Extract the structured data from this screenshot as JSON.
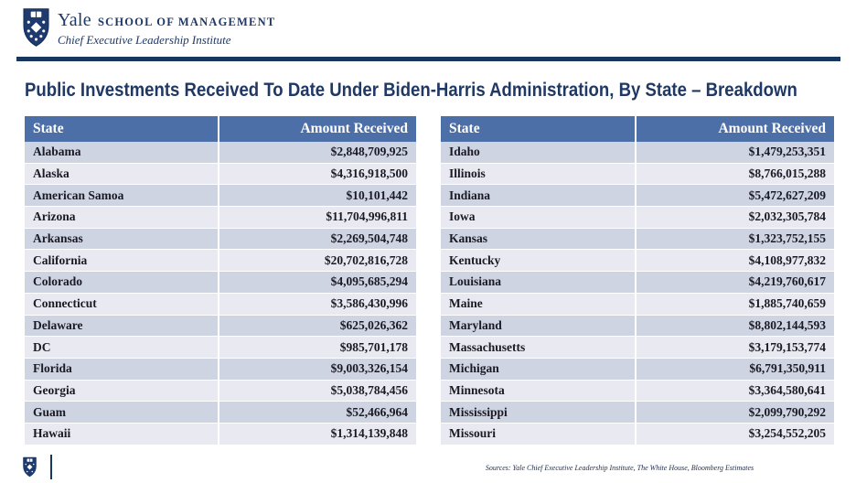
{
  "header": {
    "brand": "Yale",
    "brand_suffix": "SCHOOL OF MANAGEMENT",
    "subtitle": "Chief Executive Leadership Institute",
    "logo_icon": "yale-shield-icon"
  },
  "title": "Public Investments Received To Date Under Biden-Harris Administration, By State – Breakdown",
  "tables": [
    {
      "columns": [
        "State",
        "Amount Received"
      ],
      "rows": [
        [
          "Alabama",
          "$2,848,709,925"
        ],
        [
          "Alaska",
          "$4,316,918,500"
        ],
        [
          "American Samoa",
          "$10,101,442"
        ],
        [
          "Arizona",
          "$11,704,996,811"
        ],
        [
          "Arkansas",
          "$2,269,504,748"
        ],
        [
          "California",
          "$20,702,816,728"
        ],
        [
          "Colorado",
          "$4,095,685,294"
        ],
        [
          "Connecticut",
          "$3,586,430,996"
        ],
        [
          "Delaware",
          "$625,026,362"
        ],
        [
          "DC",
          "$985,701,178"
        ],
        [
          "Florida",
          "$9,003,326,154"
        ],
        [
          "Georgia",
          "$5,038,784,456"
        ],
        [
          "Guam",
          "$52,466,964"
        ],
        [
          "Hawaii",
          "$1,314,139,848"
        ]
      ]
    },
    {
      "columns": [
        "State",
        "Amount Received"
      ],
      "rows": [
        [
          "Idaho",
          "$1,479,253,351"
        ],
        [
          "Illinois",
          "$8,766,015,288"
        ],
        [
          "Indiana",
          "$5,472,627,209"
        ],
        [
          "Iowa",
          "$2,032,305,784"
        ],
        [
          "Kansas",
          "$1,323,752,155"
        ],
        [
          "Kentucky",
          "$4,108,977,832"
        ],
        [
          "Louisiana",
          "$4,219,760,617"
        ],
        [
          "Maine",
          "$1,885,740,659"
        ],
        [
          "Maryland",
          "$8,802,144,593"
        ],
        [
          "Massachusetts",
          "$3,179,153,774"
        ],
        [
          "Michigan",
          "$6,791,350,911"
        ],
        [
          "Minnesota",
          "$3,364,580,641"
        ],
        [
          "Mississippi",
          "$2,099,790,292"
        ],
        [
          "Missouri",
          "$3,254,552,205"
        ]
      ]
    }
  ],
  "footer": {
    "sources": "Sources: Yale Chief Executive Leadership Institute, The White House, Bloomberg Estimates",
    "logo_icon": "yale-shield-icon"
  },
  "colors": {
    "navy": "#1F3864",
    "rule": "#17375E",
    "table_header_bg": "#4C6FA8",
    "row_odd_bg": "#CFD4E3",
    "row_even_bg": "#E9EAF1"
  }
}
